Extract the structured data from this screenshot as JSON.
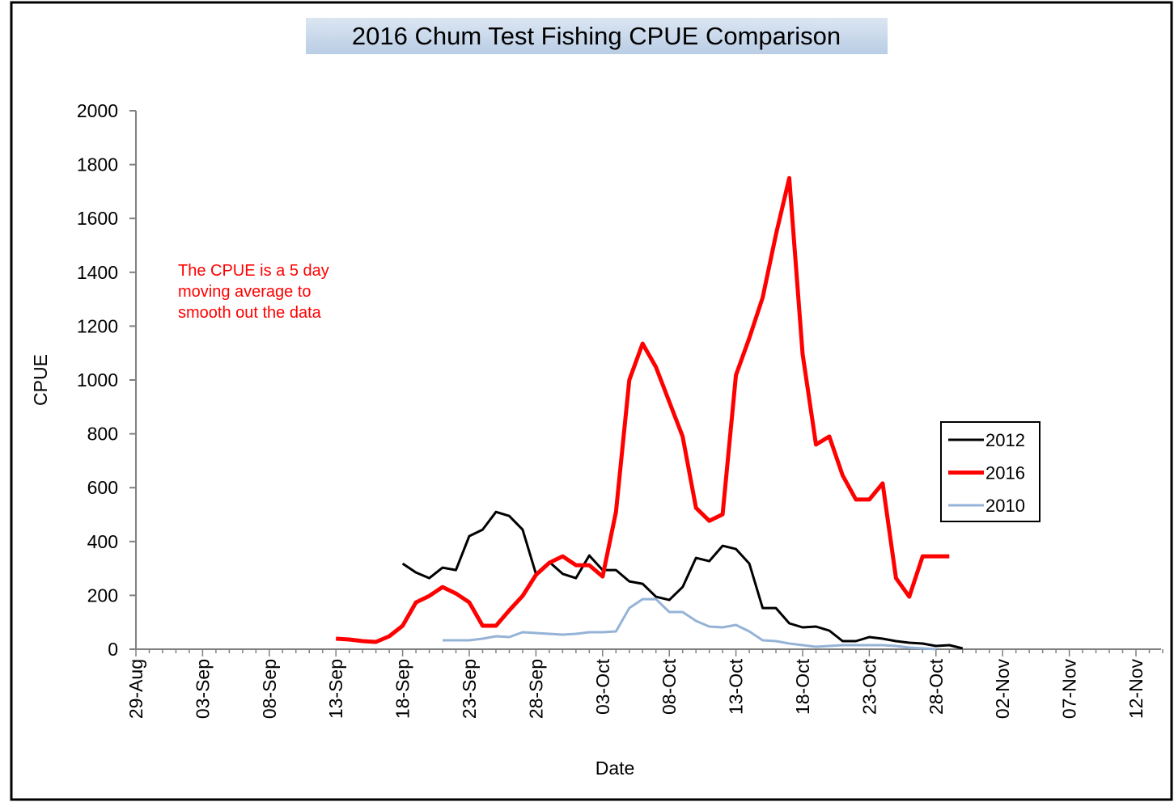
{
  "chart_data": {
    "type": "line",
    "title": "2016 Chum Test Fishing CPUE Comparison",
    "xlabel": "Date",
    "ylabel": "CPUE",
    "annotation": [
      "The CPUE is a 5 day",
      "moving average to",
      "smooth out the data"
    ],
    "categories": [
      "29-Aug",
      null,
      null,
      null,
      null,
      "03-Sep",
      null,
      null,
      null,
      null,
      "08-Sep",
      null,
      null,
      null,
      null,
      "13-Sep",
      null,
      null,
      null,
      null,
      "18-Sep",
      null,
      null,
      null,
      null,
      "23-Sep",
      null,
      null,
      null,
      null,
      "28-Sep",
      null,
      null,
      null,
      null,
      "03-Oct",
      null,
      null,
      null,
      null,
      "08-Oct",
      null,
      null,
      null,
      null,
      "13-Oct",
      null,
      null,
      null,
      null,
      "18-Oct",
      null,
      null,
      null,
      null,
      "23-Oct",
      null,
      null,
      null,
      null,
      "28-Oct",
      null,
      null,
      null,
      null,
      "02-Nov",
      null,
      null,
      null,
      null,
      "07-Nov",
      null,
      null,
      null,
      null,
      "12-Nov",
      null,
      null
    ],
    "series": [
      {
        "name": "2012",
        "color": "#000000",
        "width": 3,
        "values": [
          null,
          null,
          null,
          null,
          null,
          null,
          null,
          null,
          null,
          null,
          null,
          null,
          null,
          null,
          null,
          null,
          null,
          null,
          null,
          null,
          318,
          285,
          264,
          303,
          294,
          420,
          444,
          510,
          495,
          444,
          280,
          324,
          280,
          264,
          348,
          294,
          294,
          252,
          243,
          195,
          183,
          231,
          339,
          327,
          384,
          372,
          318,
          153,
          153,
          96,
          81,
          84,
          69,
          30,
          30,
          45,
          39,
          30,
          24,
          21,
          12,
          15,
          3,
          null,
          null,
          null,
          null,
          null,
          null,
          null,
          null,
          null,
          null,
          null,
          null,
          null,
          null,
          null
        ]
      },
      {
        "name": "2016",
        "color": "#ff0000",
        "width": 5,
        "values": [
          null,
          null,
          null,
          null,
          null,
          null,
          null,
          null,
          null,
          null,
          null,
          null,
          null,
          null,
          null,
          39,
          36,
          30,
          27,
          48,
          87,
          174,
          198,
          231,
          207,
          174,
          87,
          87,
          144,
          198,
          276,
          321,
          345,
          312,
          312,
          270,
          510,
          1000,
          1135,
          1048,
          919,
          790,
          525,
          477,
          501,
          1018,
          1156,
          1306,
          1540,
          1750,
          1096,
          760,
          790,
          646,
          556,
          556,
          616,
          264,
          195,
          345,
          345,
          345,
          null,
          null,
          null,
          null,
          null,
          null,
          null,
          null,
          null,
          null,
          null,
          null,
          null,
          null,
          null,
          null
        ]
      },
      {
        "name": "2010",
        "color": "#95b3d7",
        "width": 3,
        "values": [
          null,
          null,
          null,
          null,
          null,
          null,
          null,
          null,
          null,
          null,
          null,
          null,
          null,
          null,
          null,
          null,
          null,
          null,
          null,
          null,
          null,
          null,
          null,
          33,
          33,
          33,
          39,
          48,
          45,
          63,
          60,
          57,
          54,
          57,
          63,
          63,
          66,
          153,
          186,
          186,
          138,
          138,
          105,
          84,
          81,
          90,
          66,
          33,
          30,
          21,
          15,
          9,
          12,
          15,
          15,
          15,
          15,
          12,
          6,
          3,
          0,
          null,
          null,
          null,
          null,
          null,
          null,
          null,
          null,
          null,
          null,
          null,
          null,
          null,
          null,
          null,
          null,
          null
        ]
      }
    ],
    "ylim": [
      0,
      2000
    ],
    "yticks": [
      0,
      200,
      400,
      600,
      800,
      1000,
      1200,
      1400,
      1600,
      1800,
      2000
    ],
    "legend": "right"
  }
}
